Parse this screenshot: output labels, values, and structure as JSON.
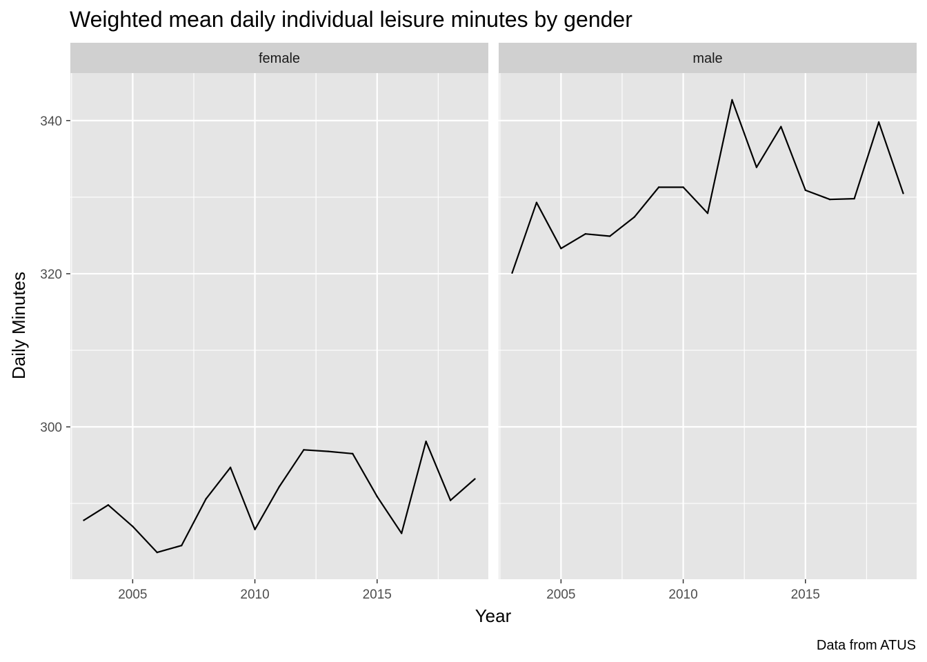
{
  "chart_data": {
    "type": "line",
    "title": "Weighted mean daily individual leisure minutes by gender",
    "xlabel": "Year",
    "ylabel": "Daily Minutes",
    "caption": "Data from ATUS",
    "x_ticks": [
      2005,
      2010,
      2015
    ],
    "y_ticks": [
      300,
      320,
      340
    ],
    "xlim": [
      2002.45,
      2019.55
    ],
    "ylim": [
      280.1,
      346.2
    ],
    "grid": true,
    "legend": "none",
    "colors": {
      "panel_background": "#e5e5e5",
      "strip_background": "#d0d0d0",
      "grid": "#ffffff",
      "line": "#000000"
    },
    "panels": [
      {
        "name": "female",
        "x": [
          2003,
          2004,
          2005,
          2006,
          2007,
          2008,
          2009,
          2010,
          2011,
          2012,
          2013,
          2014,
          2015,
          2016,
          2017,
          2018,
          2019
        ],
        "values": [
          287.8,
          289.8,
          287.0,
          283.6,
          284.5,
          290.6,
          294.7,
          286.6,
          292.2,
          297.0,
          296.8,
          296.5,
          290.9,
          286.1,
          298.1,
          290.4,
          293.2
        ]
      },
      {
        "name": "male",
        "x": [
          2003,
          2004,
          2005,
          2006,
          2007,
          2008,
          2009,
          2010,
          2011,
          2012,
          2013,
          2014,
          2015,
          2016,
          2017,
          2018,
          2019
        ],
        "values": [
          320.1,
          329.3,
          323.3,
          325.2,
          324.9,
          327.4,
          331.3,
          331.3,
          327.9,
          342.7,
          333.9,
          339.2,
          330.9,
          329.7,
          329.8,
          339.8,
          330.5
        ]
      }
    ]
  }
}
